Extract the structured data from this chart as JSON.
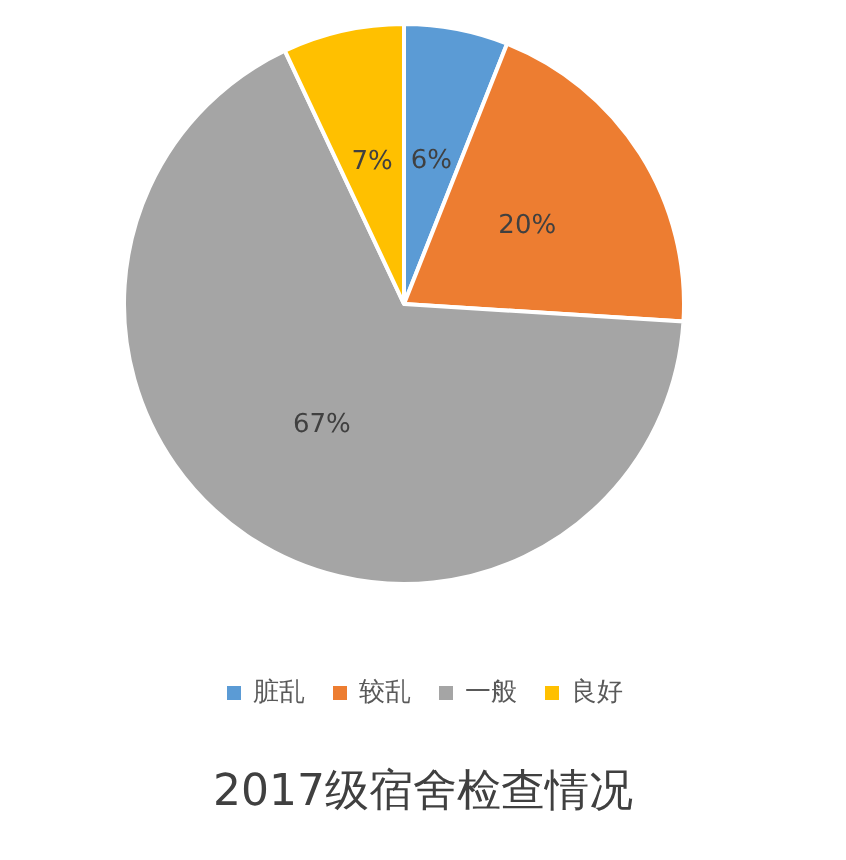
{
  "chart_data": {
    "type": "pie",
    "title": "2017级宿舍检查情况",
    "categories": [
      "脏乱",
      "较乱",
      "一般",
      "良好"
    ],
    "values": [
      6,
      20,
      67,
      7
    ],
    "value_labels": [
      "6%",
      "20%",
      "67%",
      "7%"
    ],
    "colors": [
      "#5b9bd5",
      "#ed7d31",
      "#a5a5a5",
      "#ffc000"
    ],
    "legend": "bottom"
  }
}
